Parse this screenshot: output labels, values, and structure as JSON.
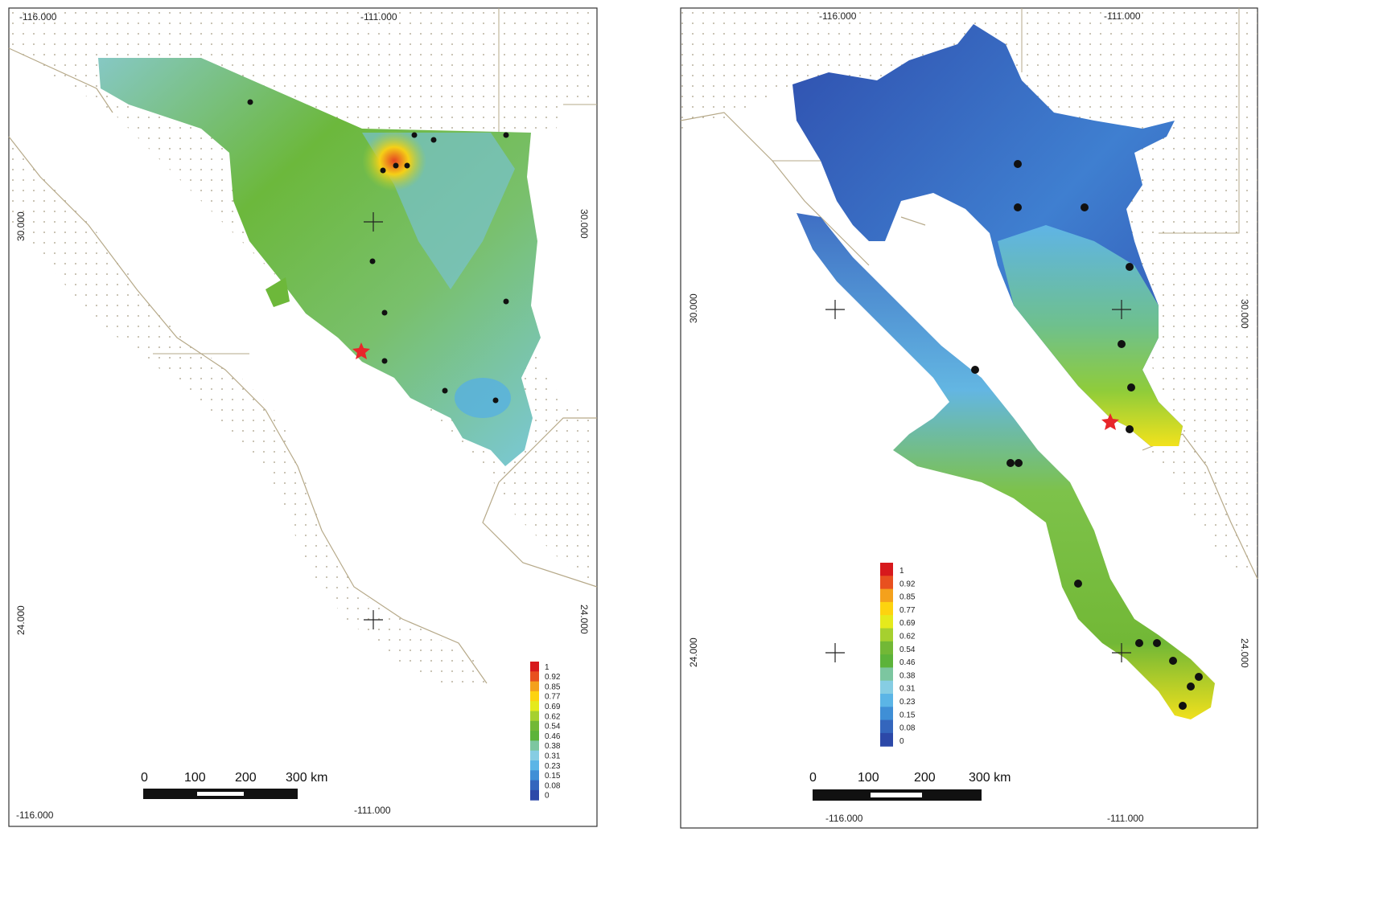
{
  "panels": [
    {
      "id": "left",
      "coords": {
        "top_left": "-116.000",
        "top_mid": "-111.000",
        "left_mid": "30.000",
        "right_mid": "30.000",
        "left_low": "24.000",
        "right_low": "24.000",
        "bottom_left": "-116.000",
        "bottom_mid": "-111.000"
      },
      "legend": {
        "values": [
          "1",
          "0.92",
          "0.85",
          "0.77",
          "0.69",
          "0.62",
          "0.54",
          "0.46",
          "0.38",
          "0.31",
          "0.23",
          "0.15",
          "0.08",
          "0"
        ]
      },
      "scalebar": {
        "labels": [
          "0",
          "100",
          "200",
          "300 km"
        ]
      }
    },
    {
      "id": "right",
      "coords": {
        "top_left": "-116.000",
        "top_mid": "-111.000",
        "left_mid": "30.000",
        "right_mid": "30.000",
        "left_low": "24.000",
        "right_low": "24.000",
        "bottom_left": "-116.000",
        "bottom_mid": "-111.000"
      },
      "legend": {
        "values": [
          "1",
          "0.92",
          "0.85",
          "0.77",
          "0.69",
          "0.62",
          "0.54",
          "0.46",
          "0.38",
          "0.31",
          "0.23",
          "0.15",
          "0.08",
          "0"
        ]
      },
      "scalebar": {
        "labels": [
          "0",
          "100",
          "200",
          "300 km"
        ]
      }
    }
  ],
  "legend_colors": [
    "#d7191c",
    "#e8501f",
    "#f4a11c",
    "#fdd30f",
    "#e5ea1c",
    "#a6d02f",
    "#72b836",
    "#5cb33a",
    "#7cc6a0",
    "#86cde3",
    "#5bb5e6",
    "#3f8fd6",
    "#3466bd",
    "#2c48a8"
  ],
  "colors": {
    "star": "#e8262a",
    "point": "#111111",
    "coast": "#b6a989",
    "frame": "#333333"
  },
  "icons": [
    "star-marker-icon",
    "occurrence-point-icon",
    "graticule-cross-icon"
  ]
}
